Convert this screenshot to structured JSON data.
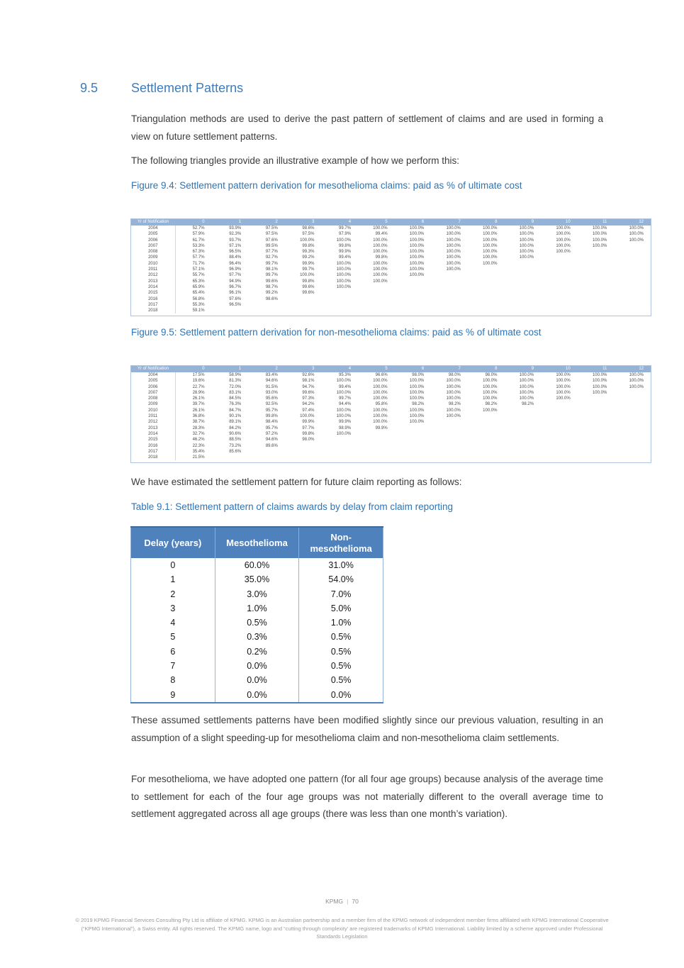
{
  "section": {
    "number": "9.5",
    "title": "Settlement Patterns"
  },
  "paragraphs": {
    "intro": "Triangulation methods are used to derive the past pattern of settlement of claims and are used in forming a view on future settlement patterns.",
    "following": "The following triangles provide an illustrative example of how we perform this:",
    "estimated": "We have estimated the settlement pattern for future claim reporting as follows:",
    "modified": "These assumed settlements patterns have been modified slightly since our previous valuation, resulting in an assumption of a slight speeding-up for mesothelioma claim and non-mesothelioma claim settlements.",
    "age_groups": "For mesothelioma, we have adopted one pattern (for all four age groups) because analysis of the average time to settlement for each of the four age groups was not materially different to the overall average time to settlement aggregated across all age groups (there was less than one month’s variation)."
  },
  "captions": {
    "fig94": "Figure 9.4: Settlement pattern derivation for mesothelioma claims: paid as % of ultimate cost",
    "fig95": "Figure 9.5: Settlement pattern derivation for non-mesothelioma claims: paid as % of ultimate cost",
    "table91": "Table 9.1: Settlement pattern of claims awards by delay from claim reporting"
  },
  "fig94_triangle": {
    "header": [
      "Yr of Notification",
      "0",
      "1",
      "2",
      "3",
      "4",
      "5",
      "6",
      "7",
      "8",
      "9",
      "10",
      "11",
      "12"
    ],
    "rows": [
      [
        "2004",
        "52.7%",
        "93.9%",
        "97.5%",
        "98.6%",
        "99.7%",
        "100.0%",
        "100.0%",
        "100.0%",
        "100.0%",
        "100.0%",
        "100.0%",
        "100.0%",
        "100.0%"
      ],
      [
        "2005",
        "57.9%",
        "92.3%",
        "97.5%",
        "97.5%",
        "97.9%",
        "99.4%",
        "100.0%",
        "100.0%",
        "100.0%",
        "100.0%",
        "100.0%",
        "100.0%",
        "100.0%"
      ],
      [
        "2006",
        "61.7%",
        "93.7%",
        "97.6%",
        "100.0%",
        "100.0%",
        "100.0%",
        "100.0%",
        "100.0%",
        "100.0%",
        "100.0%",
        "100.0%",
        "100.0%",
        "100.0%"
      ],
      [
        "2007",
        "53.3%",
        "97.1%",
        "99.5%",
        "99.8%",
        "99.8%",
        "100.0%",
        "100.0%",
        "100.0%",
        "100.0%",
        "100.0%",
        "100.0%",
        "100.0%"
      ],
      [
        "2008",
        "67.3%",
        "96.5%",
        "97.7%",
        "99.3%",
        "99.9%",
        "100.0%",
        "100.0%",
        "100.0%",
        "100.0%",
        "100.0%",
        "100.0%"
      ],
      [
        "2009",
        "57.7%",
        "88.4%",
        "92.7%",
        "99.2%",
        "99.4%",
        "99.8%",
        "100.0%",
        "100.0%",
        "100.0%",
        "100.0%"
      ],
      [
        "2010",
        "71.7%",
        "96.4%",
        "99.7%",
        "99.9%",
        "100.0%",
        "100.0%",
        "100.0%",
        "100.0%",
        "100.0%"
      ],
      [
        "2011",
        "57.1%",
        "96.9%",
        "98.1%",
        "99.7%",
        "100.0%",
        "100.0%",
        "100.0%",
        "100.0%"
      ],
      [
        "2012",
        "55.7%",
        "97.7%",
        "99.7%",
        "100.0%",
        "100.0%",
        "100.0%",
        "100.0%"
      ],
      [
        "2013",
        "65.3%",
        "94.9%",
        "99.6%",
        "99.8%",
        "100.0%",
        "100.0%"
      ],
      [
        "2014",
        "65.9%",
        "96.7%",
        "98.7%",
        "99.6%",
        "100.0%"
      ],
      [
        "2015",
        "65.4%",
        "96.1%",
        "99.2%",
        "99.6%"
      ],
      [
        "2016",
        "56.8%",
        "97.6%",
        "98.6%"
      ],
      [
        "2017",
        "55.3%",
        "96.5%"
      ],
      [
        "2018",
        "59.1%"
      ]
    ]
  },
  "fig95_triangle": {
    "header": [
      "Yr of Notification",
      "0",
      "1",
      "2",
      "3",
      "4",
      "5",
      "6",
      "7",
      "8",
      "9",
      "10",
      "11",
      "12"
    ],
    "rows": [
      [
        "2004",
        "17.5%",
        "58.9%",
        "83.4%",
        "92.6%",
        "95.3%",
        "96.6%",
        "98.0%",
        "98.0%",
        "98.0%",
        "100.0%",
        "100.0%",
        "100.0%",
        "100.0%"
      ],
      [
        "2005",
        "19.6%",
        "81.3%",
        "94.6%",
        "98.1%",
        "100.0%",
        "100.0%",
        "100.0%",
        "100.0%",
        "100.0%",
        "100.0%",
        "100.0%",
        "100.0%",
        "100.0%"
      ],
      [
        "2006",
        "22.7%",
        "72.0%",
        "91.5%",
        "94.7%",
        "99.4%",
        "100.0%",
        "100.0%",
        "100.0%",
        "100.0%",
        "100.0%",
        "100.0%",
        "100.0%",
        "100.0%"
      ],
      [
        "2007",
        "28.9%",
        "83.1%",
        "93.0%",
        "99.6%",
        "100.0%",
        "100.0%",
        "100.0%",
        "100.0%",
        "100.0%",
        "100.0%",
        "100.0%",
        "100.0%"
      ],
      [
        "2008",
        "26.1%",
        "84.5%",
        "95.6%",
        "97.3%",
        "99.7%",
        "100.0%",
        "100.0%",
        "100.0%",
        "100.0%",
        "100.0%",
        "100.0%"
      ],
      [
        "2009",
        "39.7%",
        "76.3%",
        "92.5%",
        "94.2%",
        "94.4%",
        "95.8%",
        "98.2%",
        "98.2%",
        "98.2%",
        "98.2%"
      ],
      [
        "2010",
        "26.1%",
        "84.7%",
        "95.7%",
        "97.4%",
        "100.0%",
        "100.0%",
        "100.0%",
        "100.0%",
        "100.0%"
      ],
      [
        "2011",
        "36.8%",
        "90.1%",
        "99.8%",
        "100.0%",
        "100.0%",
        "100.0%",
        "100.0%",
        "100.0%"
      ],
      [
        "2012",
        "38.7%",
        "89.1%",
        "98.4%",
        "99.9%",
        "99.9%",
        "100.0%",
        "100.0%"
      ],
      [
        "2013",
        "28.3%",
        "84.2%",
        "95.7%",
        "97.7%",
        "98.9%",
        "99.9%"
      ],
      [
        "2014",
        "32.7%",
        "90.6%",
        "97.2%",
        "99.8%",
        "100.0%"
      ],
      [
        "2015",
        "46.2%",
        "88.5%",
        "94.6%",
        "98.0%"
      ],
      [
        "2016",
        "22.3%",
        "73.2%",
        "89.6%"
      ],
      [
        "2017",
        "35.4%",
        "85.6%"
      ],
      [
        "2018",
        "21.5%"
      ]
    ]
  },
  "table91": {
    "header": [
      "Delay (years)",
      "Mesothelioma",
      "Non-mesothelioma"
    ],
    "rows": [
      [
        "0",
        "60.0%",
        "31.0%"
      ],
      [
        "1",
        "35.0%",
        "54.0%"
      ],
      [
        "2",
        "3.0%",
        "7.0%"
      ],
      [
        "3",
        "1.0%",
        "5.0%"
      ],
      [
        "4",
        "0.5%",
        "1.0%"
      ],
      [
        "5",
        "0.3%",
        "0.5%"
      ],
      [
        "6",
        "0.2%",
        "0.5%"
      ],
      [
        "7",
        "0.0%",
        "0.5%"
      ],
      [
        "8",
        "0.0%",
        "0.5%"
      ],
      [
        "9",
        "0.0%",
        "0.0%"
      ]
    ]
  },
  "footer": {
    "brand": "KPMG",
    "page_number": "70",
    "copyright": "© 2019 KPMG Financial Services Consulting Pty Ltd is affiliate of KPMG. KPMG is an Australian partnership and a member firm of the KPMG network of independent member firms affiliated with KPMG International Cooperative (“KPMG International”), a Swiss entity. All rights reserved. The KPMG name, logo and “cutting through complexity’ are registered trademarks of KPMG International. Liability limited by a scheme approved under Professional Standards Legislation"
  },
  "colors": {
    "heading_blue": "#3e7cba",
    "caption_blue": "#2e74b5",
    "triangle_header_blue": "#95b3d7",
    "table_header_blue": "#4f81bd",
    "footer_gray": "#9b9b9b"
  }
}
